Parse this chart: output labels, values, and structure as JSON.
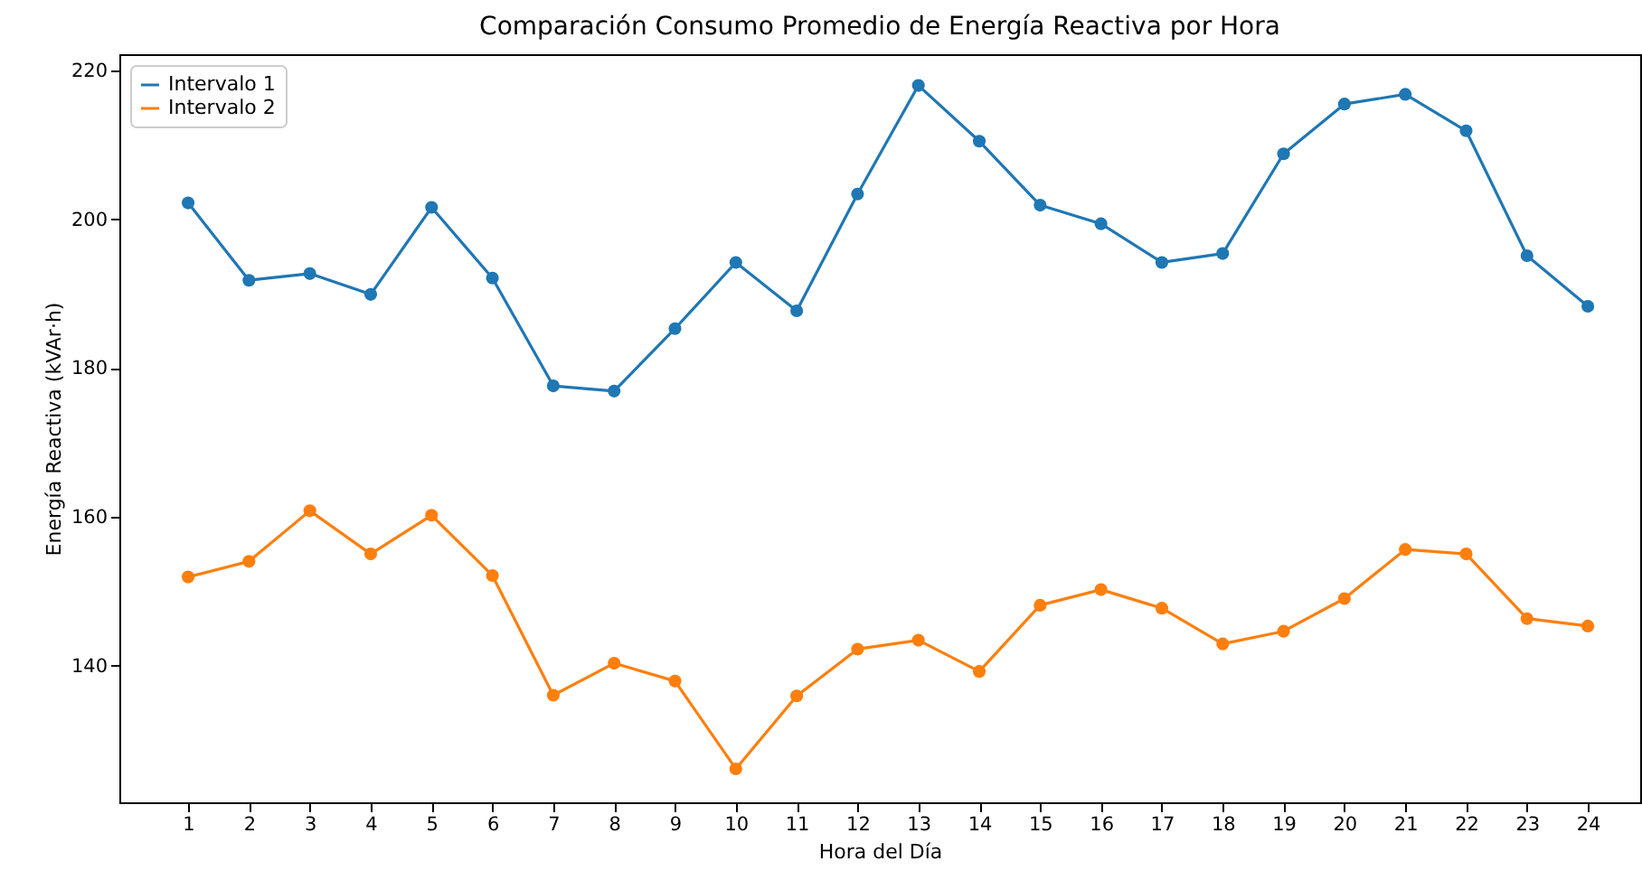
{
  "chart_data": {
    "type": "line",
    "title": "Comparación Consumo Promedio de Energía Reactiva por Hora",
    "xlabel": "Hora del Día",
    "ylabel": "Energía Reactiva (kVAr·h)",
    "x": [
      1,
      2,
      3,
      4,
      5,
      6,
      7,
      8,
      9,
      10,
      11,
      12,
      13,
      14,
      15,
      16,
      17,
      18,
      19,
      20,
      21,
      22,
      23,
      24
    ],
    "series": [
      {
        "name": "Intervalo 1",
        "color": "#1f77b4",
        "values": [
          202.2,
          191.8,
          192.7,
          189.9,
          201.6,
          192.1,
          177.6,
          176.9,
          185.3,
          194.2,
          187.7,
          203.4,
          218.0,
          210.5,
          201.9,
          199.4,
          194.2,
          195.4,
          208.8,
          215.5,
          216.8,
          211.9,
          195.1,
          188.3
        ]
      },
      {
        "name": "Intervalo 2",
        "color": "#ff7f0e",
        "values": [
          151.9,
          154.0,
          160.8,
          155.0,
          160.2,
          152.1,
          136.0,
          140.3,
          137.9,
          126.1,
          135.9,
          142.2,
          143.4,
          139.2,
          148.1,
          150.2,
          147.7,
          142.9,
          144.6,
          149.0,
          155.6,
          155.0,
          146.3,
          145.3
        ]
      }
    ],
    "xlim": [
      -0.13,
      24.86
    ],
    "xticks": [
      1,
      2,
      3,
      4,
      5,
      6,
      7,
      8,
      9,
      10,
      11,
      12,
      13,
      14,
      15,
      16,
      17,
      18,
      19,
      20,
      21,
      22,
      23,
      24
    ],
    "ylim": [
      121.6,
      222.2
    ],
    "yticks": [
      140,
      160,
      180,
      200,
      220
    ],
    "legend": "top left",
    "marker": "circle",
    "line_style": "solid",
    "grid": false
  }
}
